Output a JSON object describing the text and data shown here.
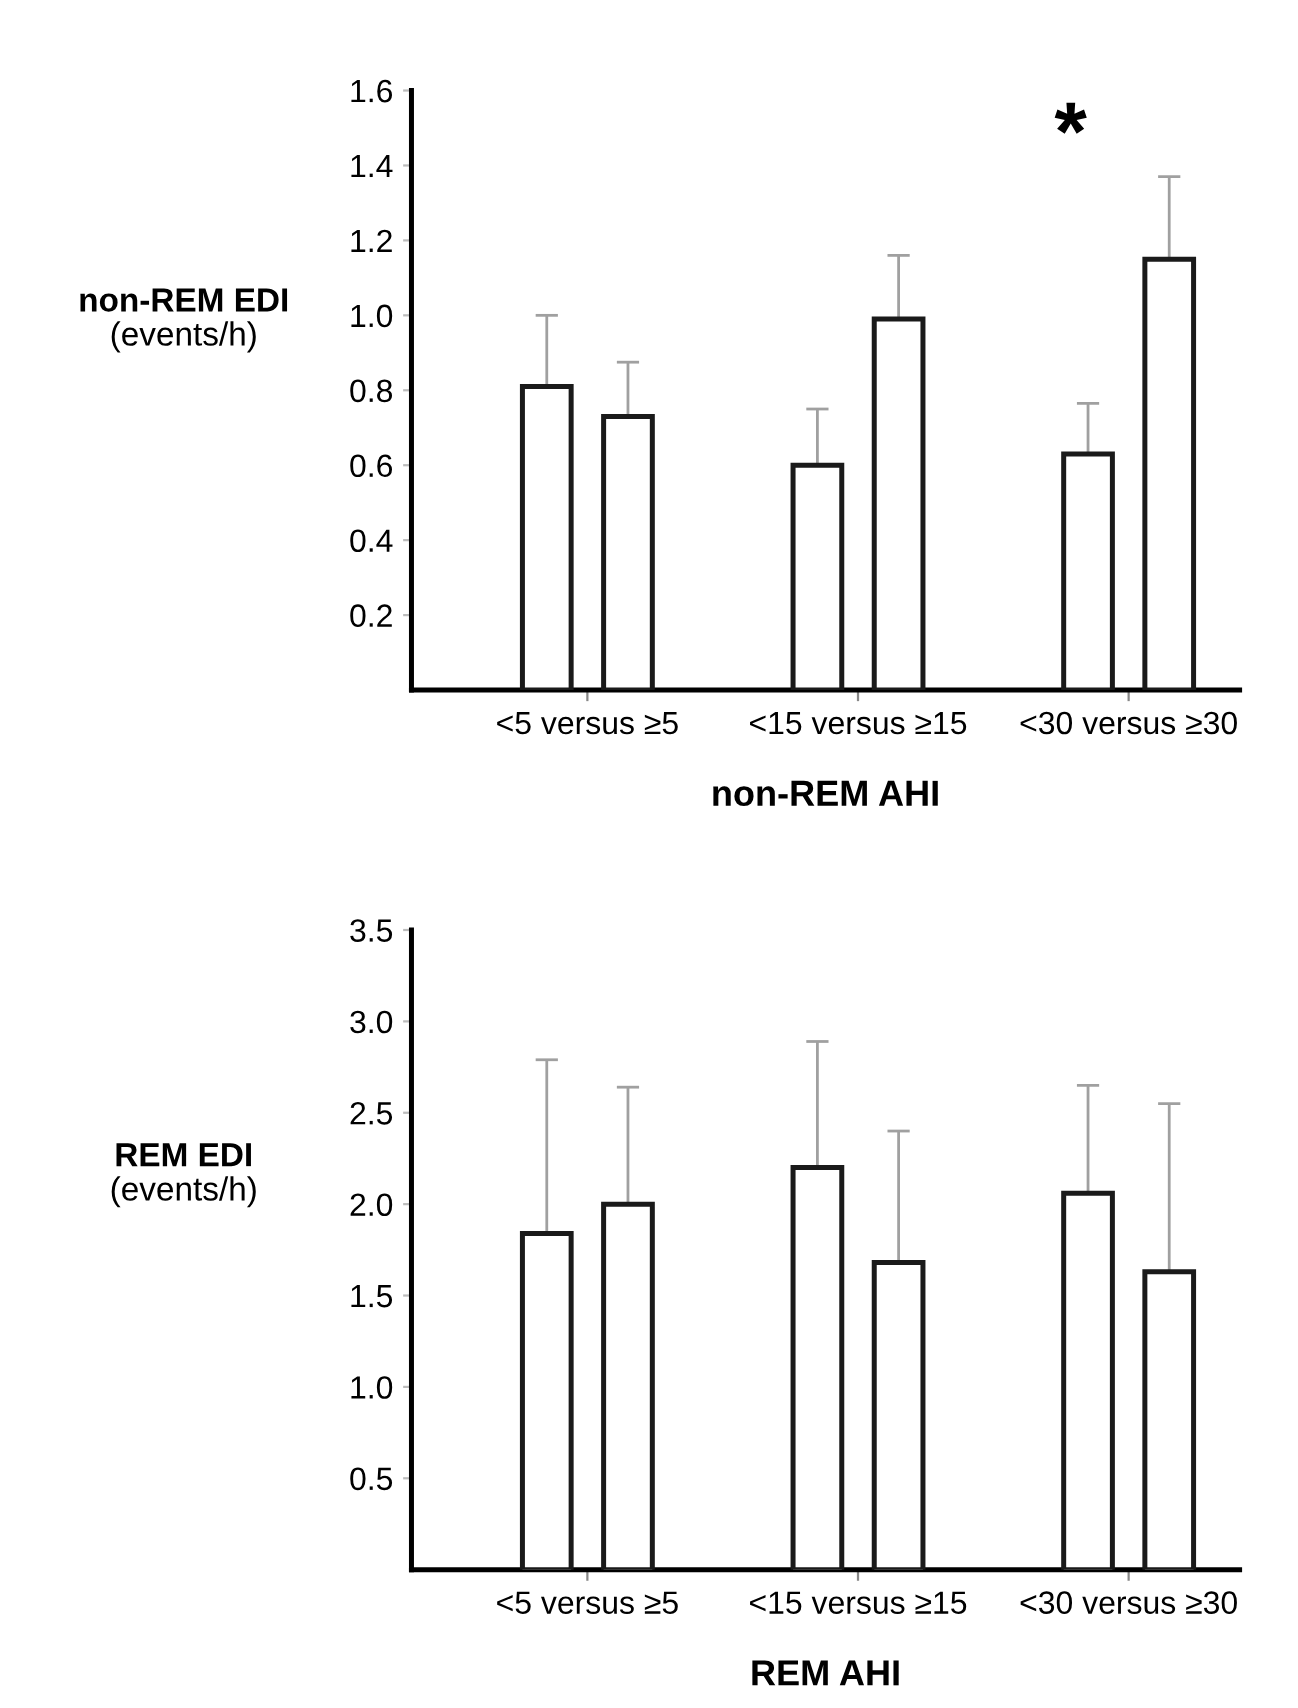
{
  "chart_data": [
    {
      "type": "bar",
      "ylabel": "non-REM EDI\n(events/h)",
      "xlabel": "non-REM AHI",
      "categories": [
        "<5 versus ≥5",
        "<15 versus ≥15",
        "<30 versus ≥30"
      ],
      "series": [
        {
          "color": "#ffffff",
          "values": [
            0.81,
            0.6,
            0.63
          ],
          "errors": [
            [
              0.81,
              1.0
            ],
            [
              0.6,
              0.75
            ],
            [
              0.63,
              0.765
            ]
          ]
        },
        {
          "color": "#ffffff",
          "values": [
            0.73,
            0.99,
            1.15
          ],
          "errors": [
            [
              0.73,
              0.875
            ],
            [
              0.99,
              1.16
            ],
            [
              1.15,
              1.37
            ]
          ]
        }
      ],
      "annotations": [
        "*"
      ],
      "ylim": [
        0,
        1.6
      ],
      "yticks": [
        0.2,
        0.4,
        0.6,
        0.8,
        {
          "value": 1,
          "label": "1.0"
        },
        1.2,
        1.4,
        1.6
      ],
      "grid": false,
      "legend": false
    },
    {
      "type": "bar",
      "ylabel": "REM EDI\n(events/h)",
      "xlabel": "REM AHI",
      "categories": [
        "<5 versus ≥5",
        "<15 versus ≥15",
        "<30 versus ≥30"
      ],
      "series": [
        {
          "color": "#ffffff",
          "values": [
            1.84,
            2.2,
            2.06
          ],
          "errors": [
            [
              1.84,
              2.79
            ],
            [
              2.2,
              2.89
            ],
            [
              2.06,
              2.65
            ]
          ]
        },
        {
          "color": "#ffffff",
          "values": [
            2.0,
            1.68,
            1.63
          ],
          "errors": [
            [
              2.0,
              2.64
            ],
            [
              1.68,
              2.4
            ],
            [
              1.63,
              2.55
            ]
          ]
        }
      ],
      "ylim": [
        0,
        3.5
      ],
      "yticks": [
        0.5,
        {
          "value": 1,
          "label": "1.0"
        },
        1.5,
        {
          "value": 2,
          "label": "2.0"
        },
        2.5,
        {
          "value": 3,
          "label": "3.0"
        },
        3.5
      ],
      "grid": false,
      "legend": false
    }
  ]
}
